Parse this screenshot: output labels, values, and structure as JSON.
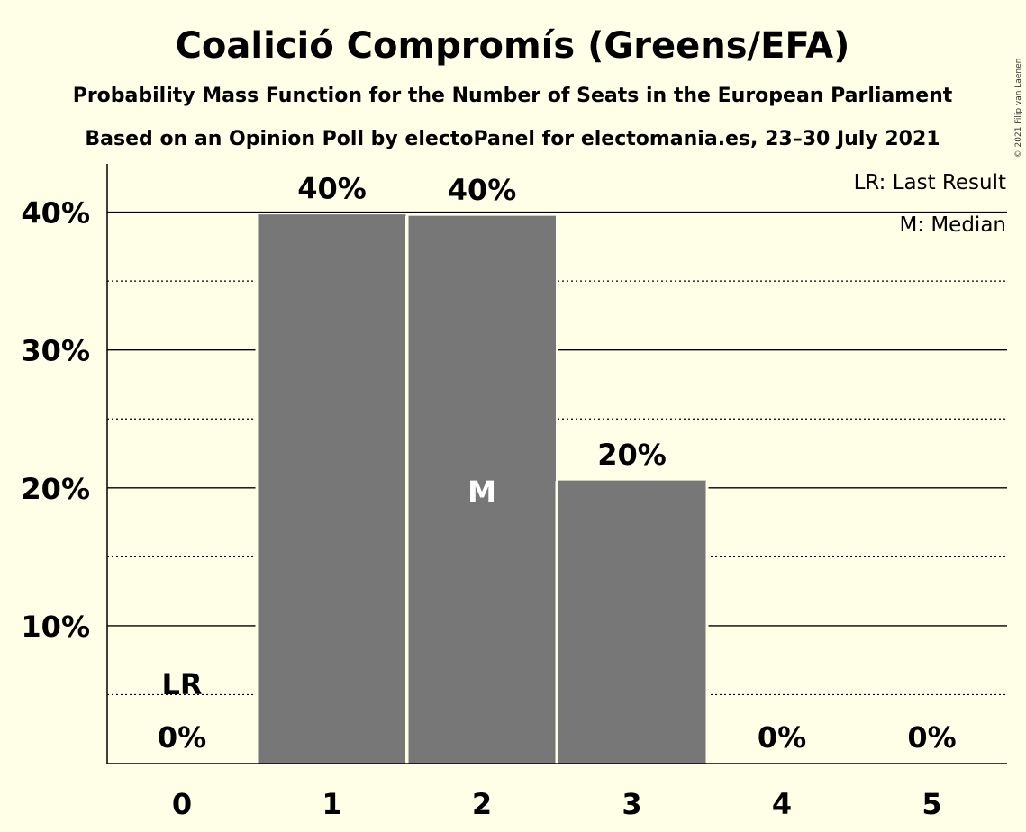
{
  "copyright": "© 2021 Filip van Laenen",
  "chart_data": {
    "type": "bar",
    "title": "Coalició Compromís (Greens/EFA)",
    "subtitle": "Probability Mass Function for the Number of Seats in the European Parliament",
    "subtitle2": "Based on an Opinion Poll by electoPanel for electomania.es, 23–30 July 2021",
    "categories": [
      "0",
      "1",
      "2",
      "3",
      "4",
      "5"
    ],
    "values": [
      0,
      39.8,
      39.7,
      20.5,
      0,
      0
    ],
    "data_labels": [
      "0%",
      "40%",
      "40%",
      "20%",
      "0%",
      "0%"
    ],
    "ylim": [
      0,
      43.5
    ],
    "y_ticks": [
      {
        "value": 10,
        "label": "10%"
      },
      {
        "value": 20,
        "label": "20%"
      },
      {
        "value": 30,
        "label": "30%"
      },
      {
        "value": 40,
        "label": "40%"
      }
    ],
    "minor_gridlines": [
      5,
      15,
      25,
      35
    ],
    "bar_color": "#777777",
    "last_result": {
      "index": 0,
      "label": "LR"
    },
    "median": {
      "index": 2,
      "label": "M"
    },
    "legend": {
      "position": "top-right",
      "entries": [
        "LR: Last Result",
        "M: Median"
      ]
    }
  }
}
